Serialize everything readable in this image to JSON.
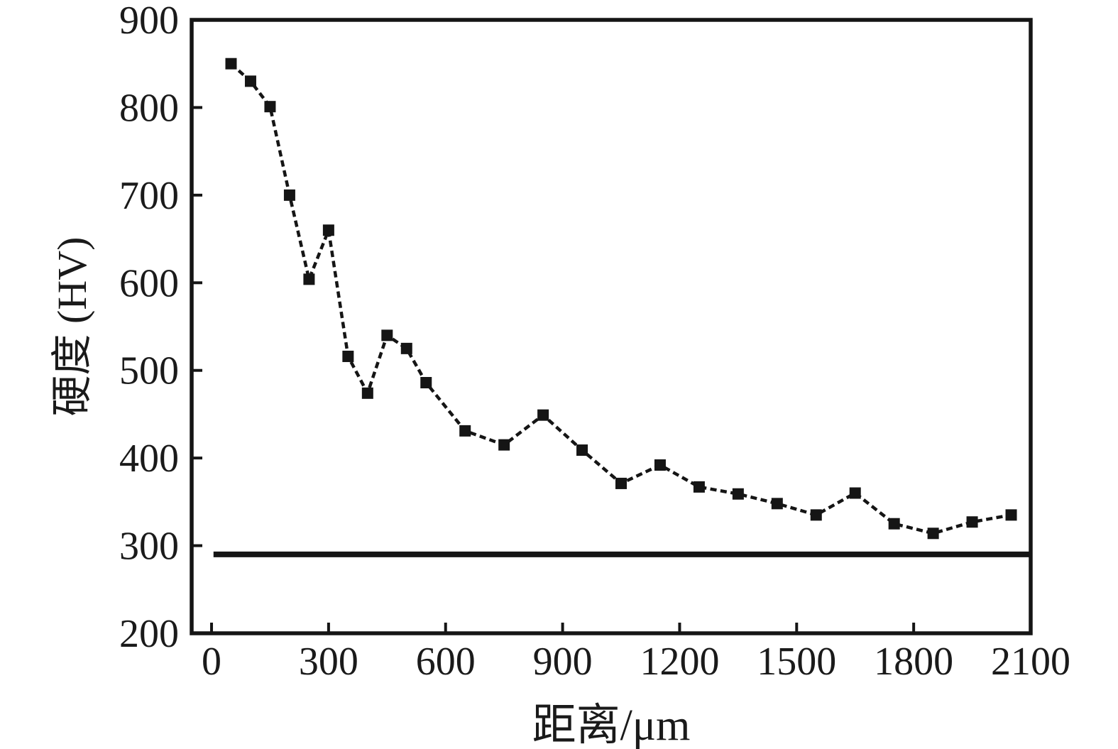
{
  "figure": {
    "background": "#ffffff",
    "ink_color": "#151515"
  },
  "chart_data": {
    "type": "line",
    "title": "",
    "xlabel": "距离/μm",
    "ylabel": "硬度 (HV)",
    "xlim": [
      -51,
      2100
    ],
    "ylim": [
      200,
      900
    ],
    "x_ticks": [
      0,
      300,
      600,
      900,
      1200,
      1500,
      1800,
      2100
    ],
    "y_ticks": [
      200,
      300,
      400,
      500,
      600,
      700,
      800,
      900
    ],
    "grid": false,
    "legend_position": "none",
    "series": [
      {
        "name": "hardness-profile",
        "marker": "square",
        "marker_color": "#151515",
        "line_style": "dashed",
        "x": [
          50,
          100,
          150,
          200,
          250,
          300,
          350,
          400,
          450,
          500,
          550,
          650,
          750,
          850,
          950,
          1050,
          1150,
          1250,
          1350,
          1450,
          1550,
          1650,
          1750,
          1850,
          1950,
          2050
        ],
        "y": [
          850,
          830,
          801,
          700,
          604,
          660,
          516,
          474,
          540,
          525,
          486,
          431,
          415,
          449,
          409,
          371,
          392,
          367,
          359,
          348,
          335,
          360,
          325,
          314,
          327,
          335
        ]
      }
    ],
    "reference_line": {
      "name": "substrate-hardness-baseline",
      "value": 290,
      "x_start": 5,
      "x_end": 2100,
      "style": "solid-thick"
    }
  }
}
